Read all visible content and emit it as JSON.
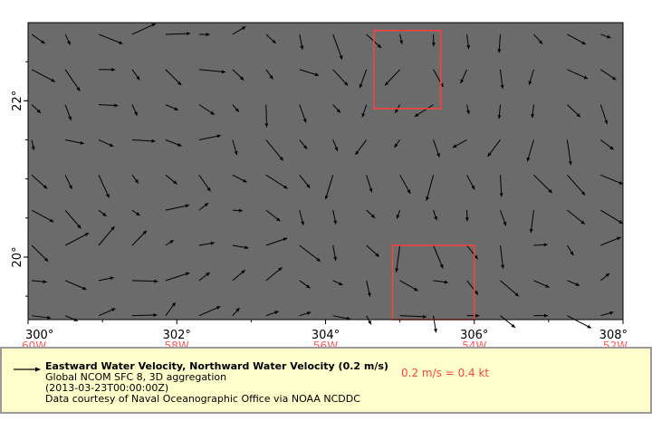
{
  "map": {
    "lon_ticks": [
      {
        "label": "300°",
        "lon": 300,
        "west": "60W"
      },
      {
        "label": "302°",
        "lon": 302,
        "west": "58W"
      },
      {
        "label": "304°",
        "lon": 304,
        "west": "56W"
      },
      {
        "label": "306°",
        "lon": 306,
        "west": "54W"
      },
      {
        "label": "308°",
        "lon": 308,
        "west": "52W"
      }
    ],
    "lat_ticks": [
      {
        "label": "22°",
        "lat": 22
      },
      {
        "label": "20°",
        "lat": 20
      }
    ],
    "lon_range": [
      300,
      308
    ],
    "lat_range": [
      19.2,
      23.0
    ],
    "colors": {
      "background": "#6b6b6b",
      "arrow": "#000000",
      "highlight": "#ff4040",
      "west_label": "#ff5a5a",
      "legend_bg": "#ffffcc"
    },
    "highlight_boxes": [
      {
        "lon_min": 304.65,
        "lon_max": 305.55,
        "lat_min": 21.9,
        "lat_max": 22.9
      },
      {
        "lon_min": 304.9,
        "lon_max": 306.0,
        "lat_min": 19.2,
        "lat_max": 20.15
      }
    ],
    "vector_grid": {
      "lon_step": 0.45,
      "lat_step": 0.45,
      "lon_start": 300.05,
      "lat_start": 19.25
    }
  },
  "legend": {
    "title": "Eastward Water Velocity, Northward Water Velocity (0.2 m/s)",
    "line2": "Global NCOM SFC 8, 3D aggregation",
    "line3": "(2013-03-23T00:00:00Z)",
    "line4": "Data courtesy of Naval Oceanographic Office via NOAA NCDDC",
    "scale": "0.2 m/s = 0.4 kt"
  }
}
